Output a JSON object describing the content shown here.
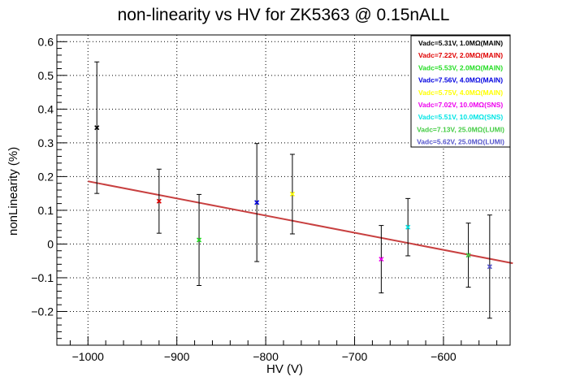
{
  "chart_data": {
    "type": "scatter",
    "title": "non-linearity vs HV for ZK5363 @ 0.15nALL",
    "xlabel": "HV (V)",
    "ylabel": "nonLinearity (%)",
    "xlim": [
      -1035,
      -525
    ],
    "ylim": [
      -0.3,
      0.62
    ],
    "x_ticks": [
      -1000,
      -900,
      -800,
      -700,
      -600
    ],
    "x_tick_labels": [
      "−1000",
      "−900",
      "−800",
      "−700",
      "−600"
    ],
    "y_ticks": [
      -0.2,
      -0.1,
      0,
      0.1,
      0.2,
      0.3,
      0.4,
      0.5,
      0.6
    ],
    "y_tick_labels": [
      "−0.2",
      "−0.1",
      "0",
      "0.1",
      "0.2",
      "0.3",
      "0.4",
      "0.5",
      "0.6"
    ],
    "grid": true,
    "legend_position": "top-right",
    "series": [
      {
        "name": "Vadc=5.31V, 1.0MΩ(MAIN)",
        "color": "#000000",
        "x": [
          -990
        ],
        "y": [
          0.345
        ],
        "err": [
          0.195
        ]
      },
      {
        "name": "Vadc=7.22V, 2.0MΩ(MAIN)",
        "color": "#e00000",
        "x": [
          -920
        ],
        "y": [
          0.127
        ],
        "err": [
          0.095
        ]
      },
      {
        "name": "Vadc=5.53V, 2.0MΩ(MAIN)",
        "color": "#22dd22",
        "x": [
          -875
        ],
        "y": [
          0.012
        ],
        "err": [
          0.135
        ]
      },
      {
        "name": "Vadc=7.56V, 4.0MΩ(MAIN)",
        "color": "#0000e0",
        "x": [
          -810
        ],
        "y": [
          0.123
        ],
        "err": [
          0.175
        ]
      },
      {
        "name": "Vadc=5.75V, 4.0MΩ(MAIN)",
        "color": "#ffff00",
        "x": [
          -770
        ],
        "y": [
          0.148
        ],
        "err": [
          0.118
        ]
      },
      {
        "name": "Vadc=7.02V, 10.0MΩ(SNS)",
        "color": "#ee00ee",
        "x": [
          -670
        ],
        "y": [
          -0.045
        ],
        "err": [
          0.1
        ]
      },
      {
        "name": "Vadc=5.51V, 10.0MΩ(SNS)",
        "color": "#00e5e5",
        "x": [
          -640
        ],
        "y": [
          0.05
        ],
        "err": [
          0.085
        ]
      },
      {
        "name": "Vadc=7.13V, 25.0MΩ(LUMI)",
        "color": "#44cc44",
        "x": [
          -572
        ],
        "y": [
          -0.033
        ],
        "err": [
          0.095
        ]
      },
      {
        "name": "Vadc=5.62V, 25.0MΩ(LUMI)",
        "color": "#5555cc",
        "x": [
          -548
        ],
        "y": [
          -0.067
        ],
        "err": [
          0.153
        ]
      }
    ],
    "fit_line": {
      "color": "#c84040",
      "x": [
        -1000,
        -522
      ],
      "y": [
        0.186,
        -0.057
      ]
    }
  }
}
